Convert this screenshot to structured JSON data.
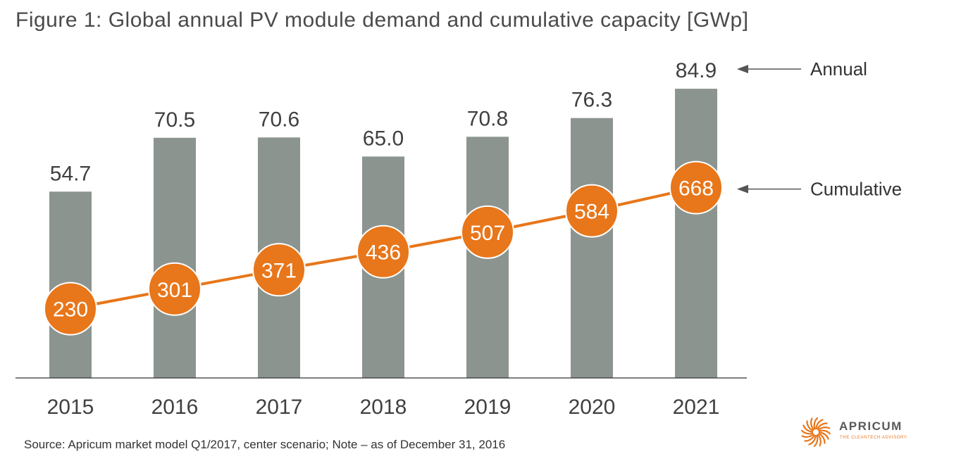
{
  "title": "Figure 1: Global annual PV module demand and cumulative capacity [GWp]",
  "source": "Source: Apricum market model Q1/2017, center scenario; Note – as of December 31, 2016",
  "logo": {
    "name": "APRICUM",
    "tagline": "THE CLEANTECH ADVISORY."
  },
  "colors": {
    "bar": "#8c9490",
    "line": "#e8761a",
    "marker": "#e8761a",
    "text": "#404040",
    "arrow": "#555555"
  },
  "chart_data": {
    "type": "bar",
    "title": "Figure 1: Global annual PV module demand and cumulative capacity [GWp]",
    "categories": [
      "2015",
      "2016",
      "2017",
      "2018",
      "2019",
      "2020",
      "2021"
    ],
    "series": [
      {
        "name": "Annual",
        "type": "bar",
        "values": [
          54.7,
          70.5,
          70.6,
          65.0,
          70.8,
          76.3,
          84.9
        ],
        "labels": [
          "54.7",
          "70.5",
          "70.6",
          "65.0",
          "70.8",
          "76.3",
          "84.9"
        ]
      },
      {
        "name": "Cumulative",
        "type": "line",
        "values": [
          230,
          301,
          371,
          436,
          507,
          584,
          668
        ],
        "labels": [
          "230",
          "301",
          "371",
          "436",
          "507",
          "584",
          "668"
        ]
      }
    ],
    "axes": {
      "left_ylim": [
        0,
        91.5
      ],
      "right_ylim": [
        0,
        1120
      ]
    },
    "grid": false,
    "legend": "annotations-right"
  }
}
